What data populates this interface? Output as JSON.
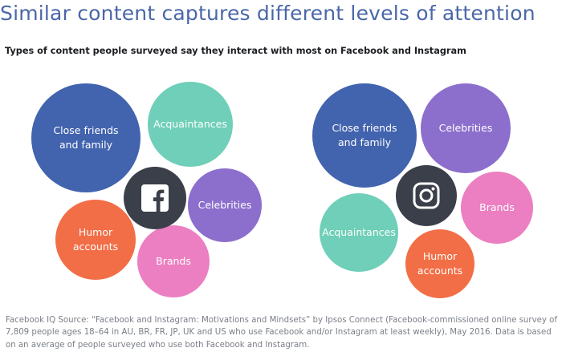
{
  "title": "Similar content captures different levels of attention",
  "subtitle": "Types of content people surveyed say they interact with most on Facebook and Instagram",
  "colors": {
    "title": "#4a67a8",
    "close_friends": "#4263ad",
    "acquaintances": "#6fcfb8",
    "celebrities": "#8c6fcc",
    "humor": "#f26e46",
    "brands": "#ec7fc1",
    "hub": "#3a3f49"
  },
  "facebook": {
    "hub_icon": "facebook-logo-icon",
    "bubbles": {
      "close_friends": "Close friends\nand family",
      "acquaintances": "Acquaintances",
      "celebrities": "Celebrities",
      "humor": "Humor\naccounts",
      "brands": "Brands"
    }
  },
  "instagram": {
    "hub_icon": "instagram-logo-icon",
    "bubbles": {
      "close_friends": "Close friends\nand family",
      "celebrities": "Celebrities",
      "brands": "Brands",
      "acquaintances": "Acquaintances",
      "humor": "Humor\naccounts"
    }
  },
  "source": "Facebook IQ Source: “Facebook and Instagram: Motivations and Mindsets” by Ipsos Connect (Facebook-commissioned online survey of 7,809 people ages 18–64 in AU, BR, FR, JP, UK and US who use Facebook and/or Instagram at least weekly), May 2016. Data is based on an average of people surveyed who use both Facebook and Instagram."
}
